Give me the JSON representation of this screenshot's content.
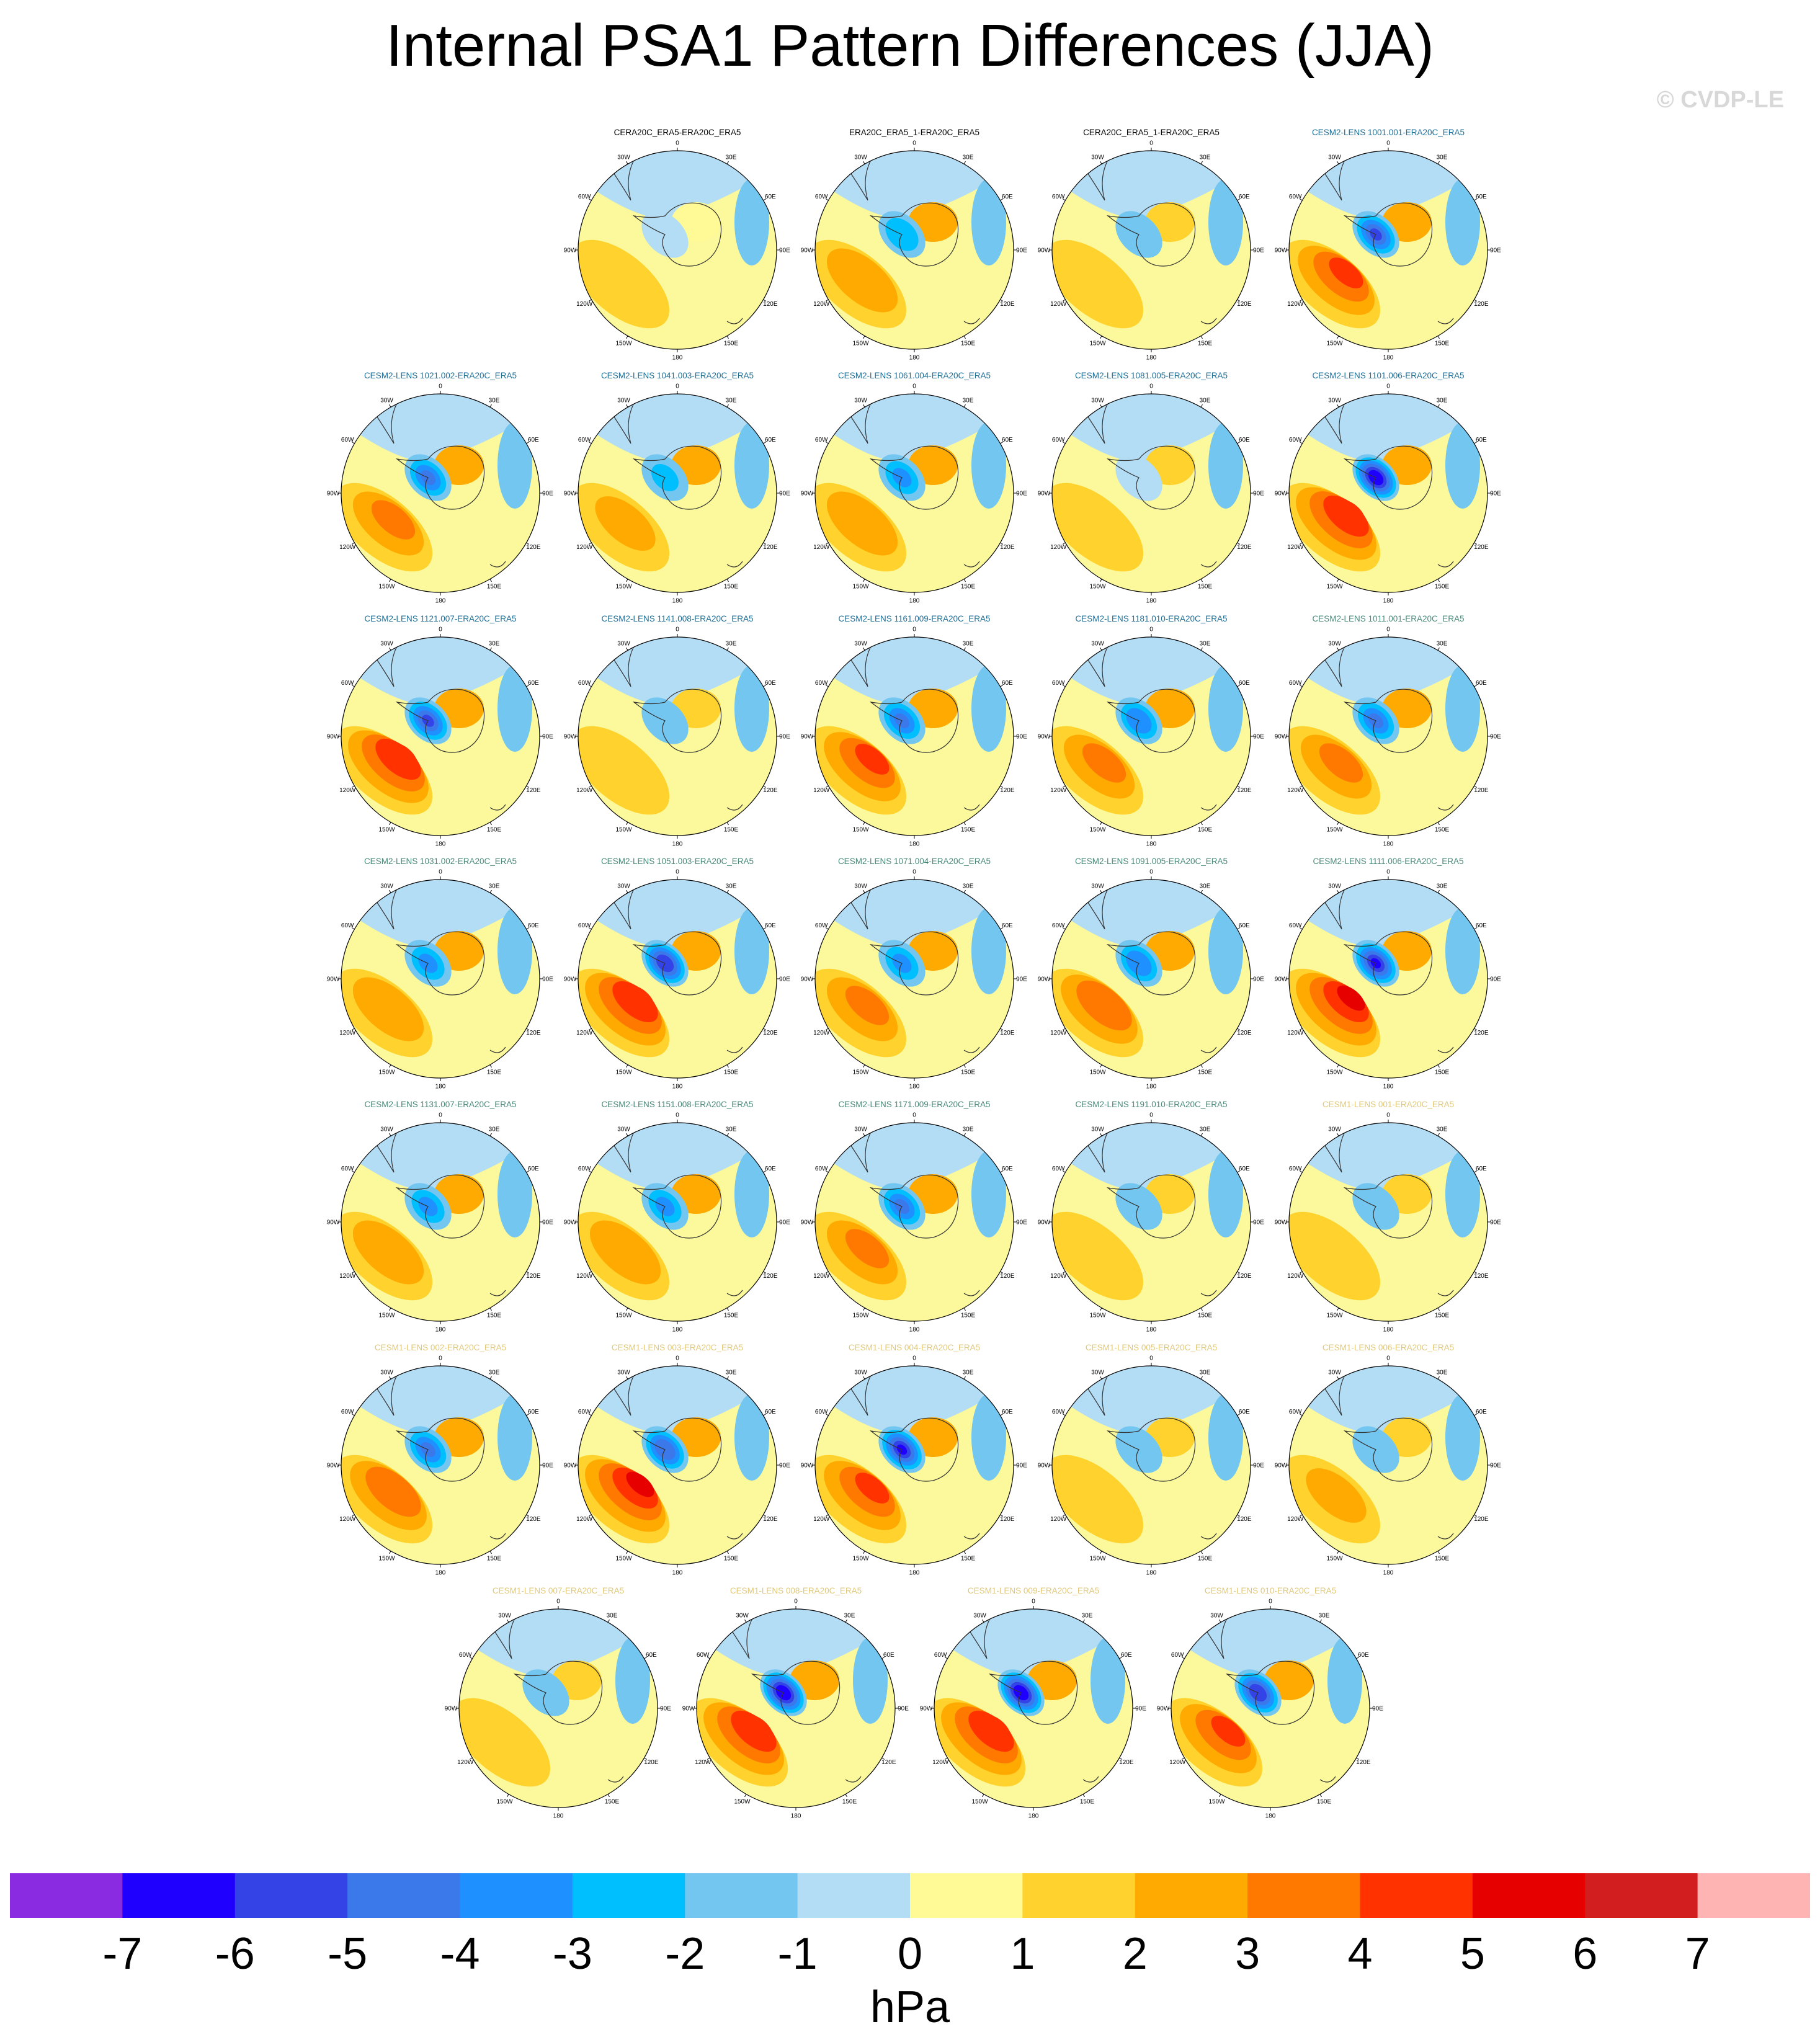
{
  "title": "Internal PSA1 Pattern Differences (JJA)",
  "credit": "© CVDP-LE",
  "lon_labels": [
    "0",
    "30E",
    "60E",
    "90E",
    "120E",
    "150E",
    "180",
    "150W",
    "120W",
    "90W",
    "60W",
    "30W"
  ],
  "colorbar": {
    "colors": [
      "#8a2be2",
      "#1f00ff",
      "#3343e6",
      "#3b78ea",
      "#1e90ff",
      "#00bfff",
      "#72c6ef",
      "#b3dcf5",
      "#fffa96",
      "#ffd22d",
      "#ffaa00",
      "#ff7800",
      "#ff3200",
      "#e60000",
      "#d21e1e",
      "#ffb4b4"
    ],
    "labels": [
      "-7",
      "-6",
      "-5",
      "-4",
      "-3",
      "-2",
      "-1",
      "0",
      "1",
      "2",
      "3",
      "4",
      "5",
      "6",
      "7"
    ],
    "units": "hPa"
  },
  "chart_data": {
    "type": "heatmap",
    "projection": "south-polar-stereographic",
    "title": "Internal PSA1 Pattern Differences (JJA)",
    "colorbar_levels": [
      -7,
      -6,
      -5,
      -4,
      -3,
      -2,
      -1,
      0,
      1,
      2,
      3,
      4,
      5,
      6,
      7
    ],
    "units": "hPa",
    "panels": [
      {
        "title": "CERA20C_ERA5-ERA20C_ERA5",
        "title_color": "#000000",
        "neg": 0.4,
        "pos": 0.6
      },
      {
        "title": "ERA20C_ERA5_1-ERA20C_ERA5",
        "title_color": "#000000",
        "neg": 2.5,
        "pos": 2.2
      },
      {
        "title": "CERA20C_ERA5_1-ERA20C_ERA5",
        "title_color": "#000000",
        "neg": 0.6,
        "pos": 1.5
      },
      {
        "title": "CESM2-LENS 1001.001-ERA20C_ERA5",
        "title_color": "#1e6e96",
        "neg": 4.8,
        "pos": 4.0
      },
      {
        "title": "CESM2-LENS 1021.002-ERA20C_ERA5",
        "title_color": "#1e6e96",
        "neg": 3.6,
        "pos": 3.0
      },
      {
        "title": "CESM2-LENS 1041.003-ERA20C_ERA5",
        "title_color": "#1e6e96",
        "neg": 2.0,
        "pos": 2.0
      },
      {
        "title": "CESM2-LENS 1061.004-ERA20C_ERA5",
        "title_color": "#1e6e96",
        "neg": 3.0,
        "pos": 2.5
      },
      {
        "title": "CESM2-LENS 1081.005-ERA20C_ERA5",
        "title_color": "#1e6e96",
        "neg": 0.5,
        "pos": 1.2
      },
      {
        "title": "CESM2-LENS 1101.006-ERA20C_ERA5",
        "title_color": "#1e6e96",
        "neg": 6.3,
        "pos": 4.5
      },
      {
        "title": "CESM2-LENS 1121.007-ERA20C_ERA5",
        "title_color": "#1e6e96",
        "neg": 5.0,
        "pos": 4.5
      },
      {
        "title": "CESM2-LENS 1141.008-ERA20C_ERA5",
        "title_color": "#1e6e96",
        "neg": 0.8,
        "pos": 1.5
      },
      {
        "title": "CESM2-LENS 1161.009-ERA20C_ERA5",
        "title_color": "#1e6e96",
        "neg": 3.8,
        "pos": 4.0
      },
      {
        "title": "CESM2-LENS 1181.010-ERA20C_ERA5",
        "title_color": "#1e6e96",
        "neg": 3.5,
        "pos": 3.0
      },
      {
        "title": "CESM2-LENS 1011.001-ERA20C_ERA5",
        "title_color": "#4a8a78",
        "neg": 3.6,
        "pos": 3.0
      },
      {
        "title": "CESM2-LENS 1031.002-ERA20C_ERA5",
        "title_color": "#4a8a78",
        "neg": 2.6,
        "pos": 2.5
      },
      {
        "title": "CESM2-LENS 1051.003-ERA20C_ERA5",
        "title_color": "#4a8a78",
        "neg": 5.5,
        "pos": 4.2
      },
      {
        "title": "CESM2-LENS 1071.004-ERA20C_ERA5",
        "title_color": "#4a8a78",
        "neg": 3.0,
        "pos": 2.8
      },
      {
        "title": "CESM2-LENS 1091.005-ERA20C_ERA5",
        "title_color": "#4a8a78",
        "neg": 3.5,
        "pos": 3.2
      },
      {
        "title": "CESM2-LENS 1111.006-ERA20C_ERA5",
        "title_color": "#4a8a78",
        "neg": 6.0,
        "pos": 4.8
      },
      {
        "title": "CESM2-LENS 1131.007-ERA20C_ERA5",
        "title_color": "#4a8a78",
        "neg": 2.7,
        "pos": 2.5
      },
      {
        "title": "CESM2-LENS 1151.008-ERA20C_ERA5",
        "title_color": "#4a8a78",
        "neg": 3.0,
        "pos": 2.5
      },
      {
        "title": "CESM2-LENS 1171.009-ERA20C_ERA5",
        "title_color": "#4a8a78",
        "neg": 4.0,
        "pos": 3.0
      },
      {
        "title": "CESM2-LENS 1191.010-ERA20C_ERA5",
        "title_color": "#4a8a78",
        "neg": 1.5,
        "pos": 1.5
      },
      {
        "title": "CESM1-LENS 001-ERA20C_ERA5",
        "title_color": "#e0c878",
        "neg": 0.6,
        "pos": 1.5
      },
      {
        "title": "CESM1-LENS 002-ERA20C_ERA5",
        "title_color": "#e0c878",
        "neg": 3.6,
        "pos": 3.5
      },
      {
        "title": "CESM1-LENS 003-ERA20C_ERA5",
        "title_color": "#e0c878",
        "neg": 4.2,
        "pos": 5.0
      },
      {
        "title": "CESM1-LENS 004-ERA20C_ERA5",
        "title_color": "#e0c878",
        "neg": 6.0,
        "pos": 4.0
      },
      {
        "title": "CESM1-LENS 005-ERA20C_ERA5",
        "title_color": "#e0c878",
        "neg": 0.6,
        "pos": 1.5
      },
      {
        "title": "CESM1-LENS 006-ERA20C_ERA5",
        "title_color": "#e0c878",
        "neg": 0.6,
        "pos": 1.8
      },
      {
        "title": "CESM1-LENS 007-ERA20C_ERA5",
        "title_color": "#e0c878",
        "neg": 0.6,
        "pos": 1.5
      },
      {
        "title": "CESM1-LENS 008-ERA20C_ERA5",
        "title_color": "#e0c878",
        "neg": 6.5,
        "pos": 4.5
      },
      {
        "title": "CESM1-LENS 009-ERA20C_ERA5",
        "title_color": "#e0c878",
        "neg": 6.3,
        "pos": 4.3
      },
      {
        "title": "CESM1-LENS 010-ERA20C_ERA5",
        "title_color": "#e0c878",
        "neg": 5.5,
        "pos": 4.0
      }
    ]
  }
}
